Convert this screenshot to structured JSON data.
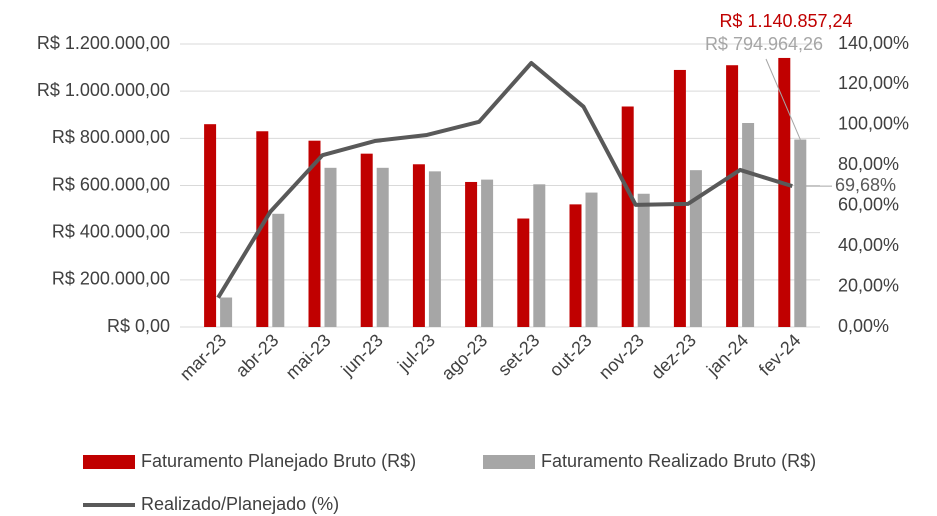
{
  "chart_data": {
    "type": "bar",
    "categories": [
      "mar-23",
      "abr-23",
      "mai-23",
      "jun-23",
      "jul-23",
      "ago-23",
      "set-23",
      "out-23",
      "nov-23",
      "dez-23",
      "jan-24",
      "fev-24"
    ],
    "series": [
      {
        "name": "Faturamento Planejado Bruto (R$)",
        "color": "#c00000",
        "type": "bar",
        "values": [
          860000,
          830000,
          790000,
          735000,
          690000,
          615000,
          460000,
          520000,
          935000,
          1090000,
          1110000,
          1140857.24
        ],
        "value_labels": [
          null,
          null,
          null,
          null,
          null,
          null,
          null,
          null,
          null,
          null,
          null,
          "R$ 1.140.857,24"
        ]
      },
      {
        "name": "Faturamento Realizado Bruto (R$)",
        "color": "#a6a6a6",
        "type": "bar",
        "values": [
          125000,
          480000,
          675000,
          675000,
          660000,
          625000,
          605000,
          570000,
          565000,
          665000,
          865000,
          794964.26
        ],
        "value_labels": [
          null,
          null,
          null,
          null,
          null,
          null,
          null,
          null,
          null,
          null,
          null,
          "R$ 794.964,26"
        ]
      },
      {
        "name": "Realizado/Planejado (%)",
        "color": "#595959",
        "type": "line",
        "axis": "y2",
        "values": [
          14.5,
          57,
          85,
          92,
          95,
          101.5,
          130.6,
          109,
          60.4,
          60.9,
          77.7,
          69.68
        ],
        "value_labels": [
          null,
          null,
          null,
          null,
          null,
          null,
          null,
          null,
          null,
          null,
          null,
          "69,68%"
        ]
      }
    ],
    "ylim": [
      0,
      1200000
    ],
    "yticks": [
      {
        "value": 0,
        "label": "R$ 0,00"
      },
      {
        "value": 200000,
        "label": "R$ 200.000,00"
      },
      {
        "value": 400000,
        "label": "R$ 400.000,00"
      },
      {
        "value": 600000,
        "label": "R$ 600.000,00"
      },
      {
        "value": 800000,
        "label": "R$ 800.000,00"
      },
      {
        "value": 1000000,
        "label": "R$ 1.000.000,00"
      },
      {
        "value": 1200000,
        "label": "R$ 1.200.000,00"
      }
    ],
    "y2lim": [
      0,
      140
    ],
    "y2ticks": [
      {
        "value": 0,
        "label": "0,00%"
      },
      {
        "value": 20,
        "label": "20,00%"
      },
      {
        "value": 40,
        "label": "40,00%"
      },
      {
        "value": 60,
        "label": "60,00%"
      },
      {
        "value": 80,
        "label": "80,00%"
      },
      {
        "value": 100,
        "label": "100,00%"
      },
      {
        "value": 120,
        "label": "120,00%"
      },
      {
        "value": 140,
        "label": "140,00%"
      }
    ],
    "grid": true,
    "legend": "bottom"
  }
}
